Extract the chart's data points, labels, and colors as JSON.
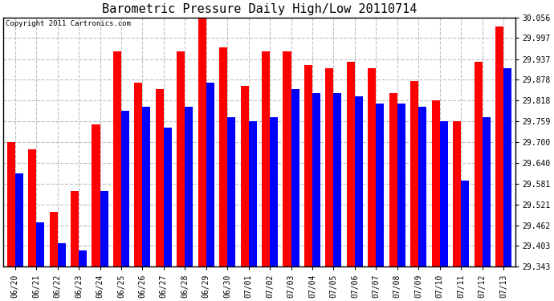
{
  "title": "Barometric Pressure Daily High/Low 20110714",
  "copyright": "Copyright 2011 Cartronics.com",
  "dates": [
    "06/20",
    "06/21",
    "06/22",
    "06/23",
    "06/24",
    "06/25",
    "06/26",
    "06/27",
    "06/28",
    "06/29",
    "06/30",
    "07/01",
    "07/02",
    "07/03",
    "07/04",
    "07/05",
    "07/06",
    "07/07",
    "07/08",
    "07/09",
    "07/10",
    "07/11",
    "07/12",
    "07/13"
  ],
  "highs": [
    29.7,
    29.68,
    29.5,
    29.56,
    29.75,
    29.96,
    29.87,
    29.85,
    29.96,
    30.056,
    29.97,
    29.86,
    29.96,
    29.96,
    29.92,
    29.91,
    29.93,
    29.91,
    29.84,
    29.875,
    29.82,
    29.76,
    29.93,
    30.03
  ],
  "lows": [
    29.61,
    29.47,
    29.41,
    29.39,
    29.56,
    29.79,
    29.8,
    29.74,
    29.8,
    29.87,
    29.77,
    29.76,
    29.77,
    29.85,
    29.84,
    29.84,
    29.83,
    29.81,
    29.81,
    29.8,
    29.76,
    29.59,
    29.77,
    29.91
  ],
  "high_color": "#ff0000",
  "low_color": "#0000ff",
  "background_color": "#ffffff",
  "grid_color": "#c0c0c0",
  "yticks": [
    29.343,
    29.403,
    29.462,
    29.521,
    29.581,
    29.64,
    29.7,
    29.759,
    29.818,
    29.878,
    29.937,
    29.997,
    30.056
  ],
  "ymin": 29.343,
  "ymax": 30.056,
  "bar_width": 0.38,
  "title_fontsize": 11,
  "tick_fontsize": 7,
  "copyright_fontsize": 6.5
}
